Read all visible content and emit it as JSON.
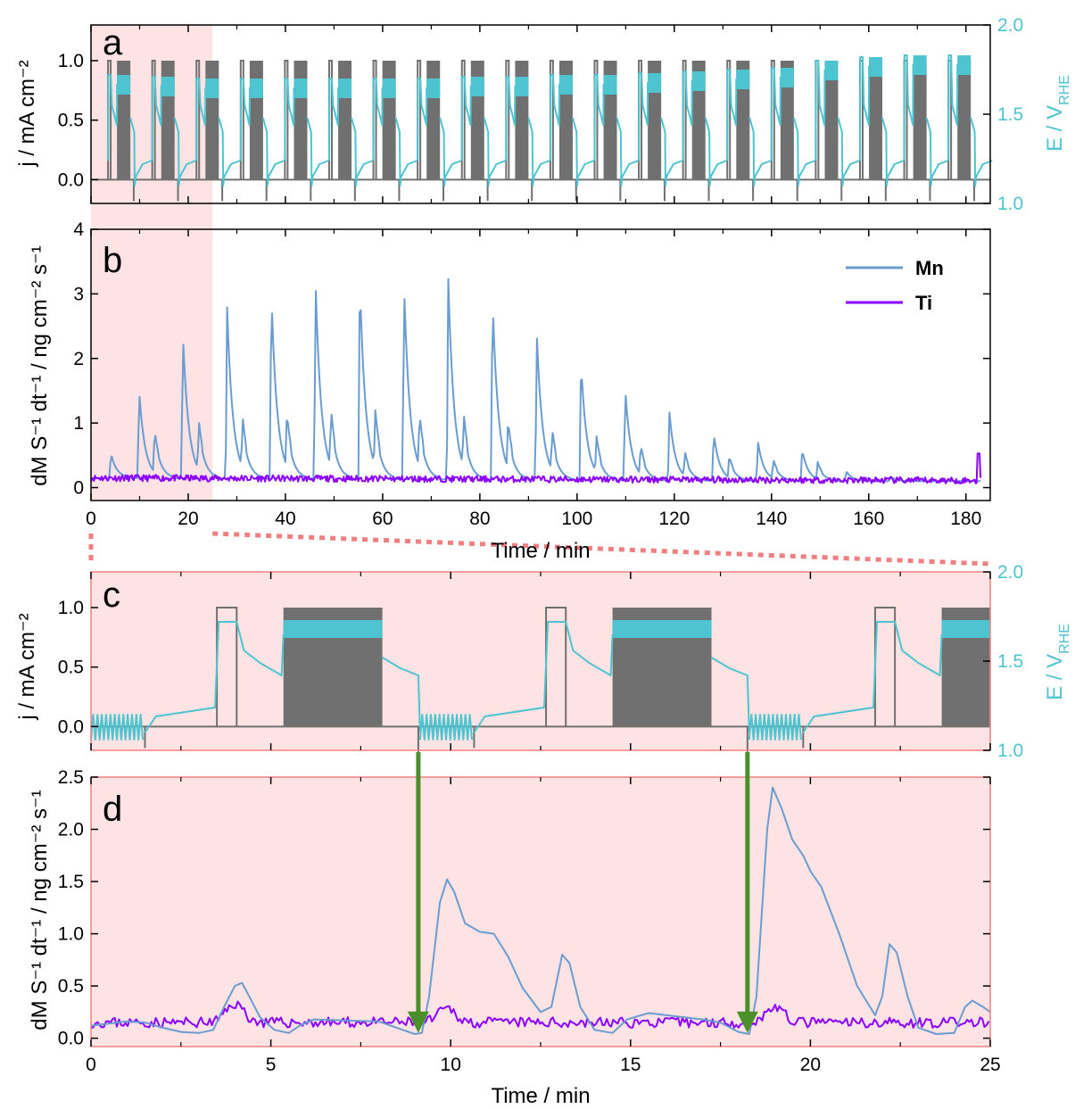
{
  "colors": {
    "current": "#707070",
    "potential": "#4ec4d0",
    "mn": "#6a9cd0",
    "ti": "#8b00ff",
    "zoom_fill": "#fde3e3",
    "zoom_edge": "#f08080",
    "arrow": "#4b8f2a"
  },
  "chart_data": [
    {
      "panel": "a",
      "type": "line",
      "xlim": [
        0,
        185
      ],
      "ylabel_left": "j / mA cm⁻²",
      "ylabel_right": "E / V",
      "ylabel_right_sub": "RHE",
      "ylim_left": [
        -0.2,
        1.3
      ],
      "ylim_right": [
        1.0,
        2.0
      ],
      "yticks_left": [
        "0.0",
        "0.5",
        "1.0"
      ],
      "yticks_right": [
        "1.0",
        "1.5",
        "2.0"
      ],
      "highlight_range": [
        0,
        25
      ],
      "cycle_count": 20,
      "cycle_period_min": 9.1,
      "pulse_current": 1.0,
      "series": [
        {
          "name": "j",
          "axis": "left"
        },
        {
          "name": "E",
          "axis": "right",
          "plateau_levels": [
            1.72,
            1.71,
            1.7,
            1.7,
            1.7,
            1.7,
            1.7,
            1.7,
            1.71,
            1.71,
            1.72,
            1.72,
            1.73,
            1.74,
            1.75,
            1.76,
            1.8,
            1.82,
            1.83,
            1.83
          ]
        }
      ]
    },
    {
      "panel": "b",
      "type": "line",
      "xlim": [
        0,
        185
      ],
      "ylim": [
        -0.2,
        4
      ],
      "xlabel": "Time / min",
      "ylabel": "dM S⁻¹ dt⁻¹ / ng cm⁻² s⁻¹",
      "xticks": [
        "0",
        "20",
        "40",
        "60",
        "80",
        "100",
        "120",
        "140",
        "160",
        "180"
      ],
      "yticks": [
        "0",
        "1",
        "2",
        "3",
        "4"
      ],
      "legend": {
        "placement": "top-right",
        "entries": [
          "Mn",
          "Ti"
        ]
      },
      "series": [
        {
          "name": "Mn",
          "peaks": [
            {
              "t": 4.1,
              "v": 0.53
            },
            {
              "t": 9.9,
              "v": 1.52
            },
            {
              "t": 13.1,
              "v": 0.8
            },
            {
              "t": 18.9,
              "v": 2.4
            },
            {
              "t": 22.2,
              "v": 0.9
            },
            {
              "t": 28.0,
              "v": 2.8
            },
            {
              "t": 31.2,
              "v": 0.92
            },
            {
              "t": 37.1,
              "v": 3.05
            },
            {
              "t": 40.3,
              "v": 0.98
            },
            {
              "t": 46.2,
              "v": 3.18
            },
            {
              "t": 49.4,
              "v": 1.02
            },
            {
              "t": 55.3,
              "v": 3.24
            },
            {
              "t": 58.5,
              "v": 1.0
            },
            {
              "t": 64.4,
              "v": 3.18
            },
            {
              "t": 67.6,
              "v": 0.97
            },
            {
              "t": 73.5,
              "v": 3.25
            },
            {
              "t": 76.7,
              "v": 0.95
            },
            {
              "t": 82.6,
              "v": 2.98
            },
            {
              "t": 85.8,
              "v": 0.88
            },
            {
              "t": 91.7,
              "v": 2.43
            },
            {
              "t": 94.9,
              "v": 0.78
            },
            {
              "t": 100.8,
              "v": 1.99
            },
            {
              "t": 104.0,
              "v": 0.7
            },
            {
              "t": 109.9,
              "v": 1.57
            },
            {
              "t": 113.1,
              "v": 0.6
            },
            {
              "t": 119.0,
              "v": 1.2
            },
            {
              "t": 122.2,
              "v": 0.52
            },
            {
              "t": 128.1,
              "v": 0.89
            },
            {
              "t": 131.3,
              "v": 0.48
            },
            {
              "t": 137.2,
              "v": 0.76
            },
            {
              "t": 140.4,
              "v": 0.44
            },
            {
              "t": 146.3,
              "v": 0.64
            },
            {
              "t": 149.5,
              "v": 0.41
            },
            {
              "t": 155.4,
              "v": 0.3
            },
            {
              "t": 164.5,
              "v": 0.22
            }
          ],
          "baseline": 0.15
        },
        {
          "name": "Ti",
          "baseline": 0.15,
          "noise": 0.05,
          "spike": {
            "t": 182.5,
            "v": 0.53
          }
        }
      ]
    },
    {
      "panel": "c",
      "type": "line",
      "xlim": [
        0,
        25
      ],
      "ylabel_left": "j / mA cm⁻²",
      "ylabel_right": "E / V",
      "ylabel_right_sub": "RHE",
      "ylim_left": [
        -0.2,
        1.3
      ],
      "ylim_right": [
        1.0,
        2.0
      ],
      "yticks_left": [
        "0.0",
        "0.5",
        "1.0"
      ],
      "yticks_right": [
        "1.0",
        "1.5",
        "2.0"
      ],
      "cycle_starts": [
        0,
        9.15,
        18.3
      ],
      "series": [
        {
          "name": "j",
          "pulse": {
            "start": 3.5,
            "end": 4.05,
            "value": 1.0
          },
          "block": {
            "start": 5.35,
            "end": 8.1,
            "low": 0.0,
            "high": 1.0
          }
        },
        {
          "name": "E",
          "pulse_level": 1.72,
          "block_band": [
            1.63,
            1.73
          ]
        }
      ]
    },
    {
      "panel": "d",
      "type": "line",
      "xlim": [
        0,
        25
      ],
      "ylim": [
        -0.08,
        2.5
      ],
      "xlabel": "Time / min",
      "ylabel": "dM S⁻¹ dt⁻¹ / ng cm⁻² s⁻¹",
      "xticks": [
        "0",
        "5",
        "10",
        "15",
        "20",
        "25"
      ],
      "yticks": [
        "0.0",
        "0.5",
        "1.0",
        "1.5",
        "2.0",
        "2.5"
      ],
      "arrows_at": [
        9.1,
        18.25
      ],
      "series": [
        {
          "name": "Mn",
          "points": [
            [
              0,
              0.12
            ],
            [
              0.5,
              0.14
            ],
            [
              1,
              0.16
            ],
            [
              1.5,
              0.15
            ],
            [
              2,
              0.1
            ],
            [
              2.5,
              0.06
            ],
            [
              3,
              0.05
            ],
            [
              3.4,
              0.08
            ],
            [
              3.7,
              0.3
            ],
            [
              4.0,
              0.5
            ],
            [
              4.2,
              0.53
            ],
            [
              4.4,
              0.4
            ],
            [
              4.7,
              0.2
            ],
            [
              5.1,
              0.08
            ],
            [
              5.5,
              0.05
            ],
            [
              5.8,
              0.12
            ],
            [
              6.2,
              0.18
            ],
            [
              7,
              0.17
            ],
            [
              8,
              0.16
            ],
            [
              8.5,
              0.1
            ],
            [
              9.0,
              0.04
            ],
            [
              9.2,
              0.05
            ],
            [
              9.4,
              0.4
            ],
            [
              9.7,
              1.3
            ],
            [
              9.9,
              1.52
            ],
            [
              10.1,
              1.4
            ],
            [
              10.4,
              1.1
            ],
            [
              10.8,
              1.02
            ],
            [
              11.2,
              1.0
            ],
            [
              11.6,
              0.78
            ],
            [
              12.0,
              0.48
            ],
            [
              12.5,
              0.25
            ],
            [
              12.8,
              0.3
            ],
            [
              13.1,
              0.8
            ],
            [
              13.3,
              0.72
            ],
            [
              13.6,
              0.3
            ],
            [
              14.0,
              0.08
            ],
            [
              14.5,
              0.05
            ],
            [
              14.9,
              0.18
            ],
            [
              15.5,
              0.24
            ],
            [
              16,
              0.22
            ],
            [
              17,
              0.18
            ],
            [
              17.5,
              0.15
            ],
            [
              18.0,
              0.06
            ],
            [
              18.3,
              0.04
            ],
            [
              18.5,
              0.4
            ],
            [
              18.8,
              2.0
            ],
            [
              18.95,
              2.4
            ],
            [
              19.2,
              2.2
            ],
            [
              19.5,
              1.9
            ],
            [
              19.8,
              1.75
            ],
            [
              20.0,
              1.6
            ],
            [
              20.3,
              1.45
            ],
            [
              20.8,
              1.0
            ],
            [
              21.3,
              0.5
            ],
            [
              21.8,
              0.22
            ],
            [
              22.0,
              0.4
            ],
            [
              22.2,
              0.9
            ],
            [
              22.4,
              0.82
            ],
            [
              22.7,
              0.4
            ],
            [
              23.0,
              0.1
            ],
            [
              23.5,
              0.04
            ],
            [
              24.0,
              0.05
            ],
            [
              24.3,
              0.3
            ],
            [
              24.5,
              0.36
            ],
            [
              24.8,
              0.3
            ],
            [
              25,
              0.25
            ]
          ]
        },
        {
          "name": "Ti",
          "baseline": 0.15,
          "noise": 0.05,
          "bumps": [
            [
              4.0,
              0.33
            ],
            [
              9.9,
              0.28
            ],
            [
              19.0,
              0.3
            ]
          ]
        }
      ]
    }
  ]
}
